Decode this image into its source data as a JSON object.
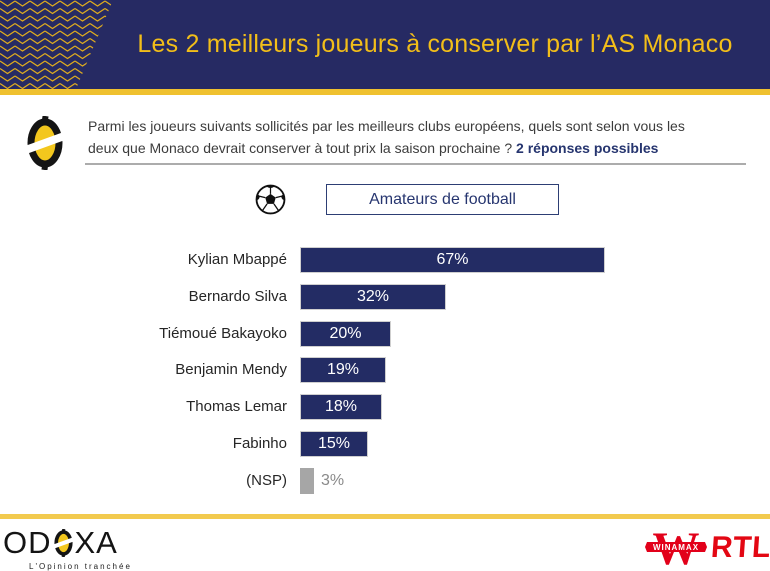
{
  "header": {
    "title": "Les 2 meilleurs joueurs à conserver par l’AS Monaco",
    "background_color": "#262A63",
    "title_color": "#F2BE19",
    "accent_line_color": "#EFC12F"
  },
  "question": {
    "line1": "Parmi les joueurs suivants sollicités par les meilleurs clubs européens, quels sont selon vous les",
    "line2": "deux que Monaco devrait conserver à tout prix la saison prochaine ? ",
    "emphasis": "2 réponses possibles",
    "emphasis_color": "#26356F"
  },
  "population": {
    "label": "Amateurs de football",
    "icon": "soccer-ball-icon"
  },
  "chart_data": {
    "type": "bar",
    "orientation": "horizontal",
    "title": "Les 2 meilleurs joueurs à conserver par l’AS Monaco",
    "subtitle": "Amateurs de football",
    "categories": [
      "Kylian Mbappé",
      "Bernardo Silva",
      "Tiémoué Bakayoko",
      "Benjamin Mendy",
      "Thomas Lemar",
      "Fabinho",
      "(NSP)"
    ],
    "values": [
      67,
      32,
      20,
      19,
      18,
      15,
      3
    ],
    "value_labels": [
      "67%",
      "32%",
      "20%",
      "19%",
      "18%",
      "15%",
      "3%"
    ],
    "bar_colors": [
      "#232C64",
      "#232C64",
      "#232C64",
      "#232C64",
      "#232C64",
      "#232C64",
      "#A6A6A6"
    ],
    "label_placement": [
      "inside",
      "inside",
      "inside",
      "inside",
      "inside",
      "inside",
      "outside"
    ],
    "unit": "%",
    "xlim": [
      0,
      100
    ],
    "grid": false,
    "legend": false
  },
  "footer": {
    "odoxa_prefix": "OD",
    "odoxa_suffix": "XA",
    "odoxa_tagline": "L'Opinion tranchée",
    "winamax_w": "W",
    "winamax_label": "WINAMAX",
    "rtl_label": "RTL",
    "accent_line_color": "#F2CA4E",
    "logo_red": "#E2001A"
  }
}
